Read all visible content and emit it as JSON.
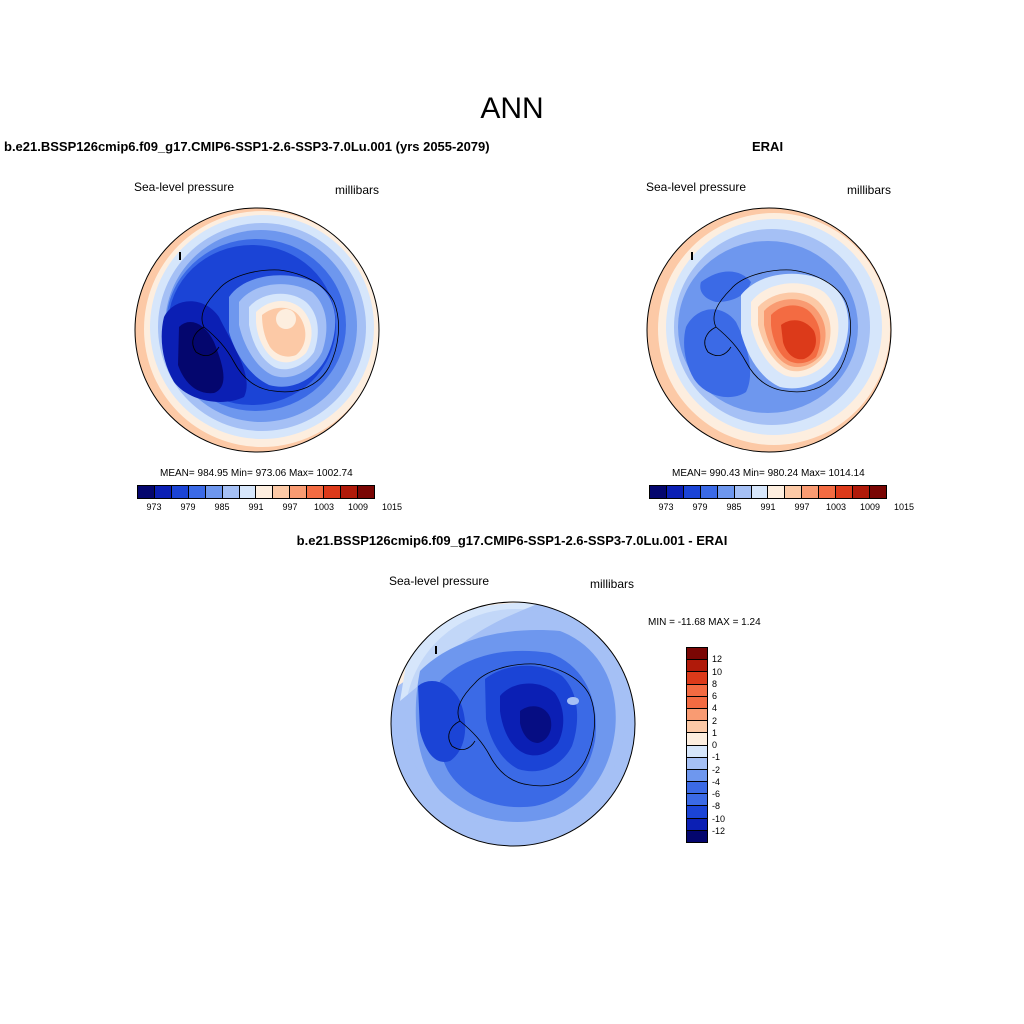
{
  "main_title": "ANN",
  "colors": {
    "seq13": [
      "#04066e",
      "#0b1fb4",
      "#1b44d6",
      "#3b6ae6",
      "#6e97ee",
      "#a5c0f5",
      "#d6e6fb",
      "#fdeedf",
      "#fcc9a6",
      "#f99b72",
      "#f36b42",
      "#dc3a1a",
      "#b01a0a",
      "#7a0604"
    ],
    "div16": [
      "#7a0604",
      "#b01a0a",
      "#dc3a1a",
      "#f36b42",
      "#f99b72",
      "#fcc9a6",
      "#fdeedf",
      "#d6e6fb",
      "#a5c0f5",
      "#6e97ee",
      "#3b6ae6",
      "#1b44d6",
      "#0b1fb4",
      "#04066e"
    ]
  },
  "panels": {
    "model": {
      "title": "b.e21.BSSP126cmip6.f09_g17.CMIP6-SSP1-2.6-SSP3-7.0Lu.001 (yrs 2055-2079)",
      "left_label": "Sea-level pressure",
      "right_label": "millibars",
      "stats": "MEAN= 984.95  Min= 973.06  Max= 1002.74",
      "ticks": [
        "973",
        "979",
        "985",
        "991",
        "997",
        "1003",
        "1009",
        "1015"
      ]
    },
    "obs": {
      "title": "ERAI",
      "left_label": "Sea-level pressure",
      "right_label": "millibars",
      "stats": "MEAN= 990.43  Min= 980.24  Max= 1014.14",
      "ticks": [
        "973",
        "979",
        "985",
        "991",
        "997",
        "1003",
        "1009",
        "1015"
      ]
    },
    "diff": {
      "title": "b.e21.BSSP126cmip6.f09_g17.CMIP6-SSP1-2.6-SSP3-7.0Lu.001 - ERAI",
      "left_label": "Sea-level pressure",
      "right_label": "millibars",
      "stats": "MIN = -11.68 MAX =   1.24",
      "ticks": [
        "12",
        "10",
        "8",
        "6",
        "4",
        "2",
        "1",
        "0",
        "-1",
        "-2",
        "-4",
        "-6",
        "-8",
        "-10",
        "-12"
      ]
    }
  }
}
